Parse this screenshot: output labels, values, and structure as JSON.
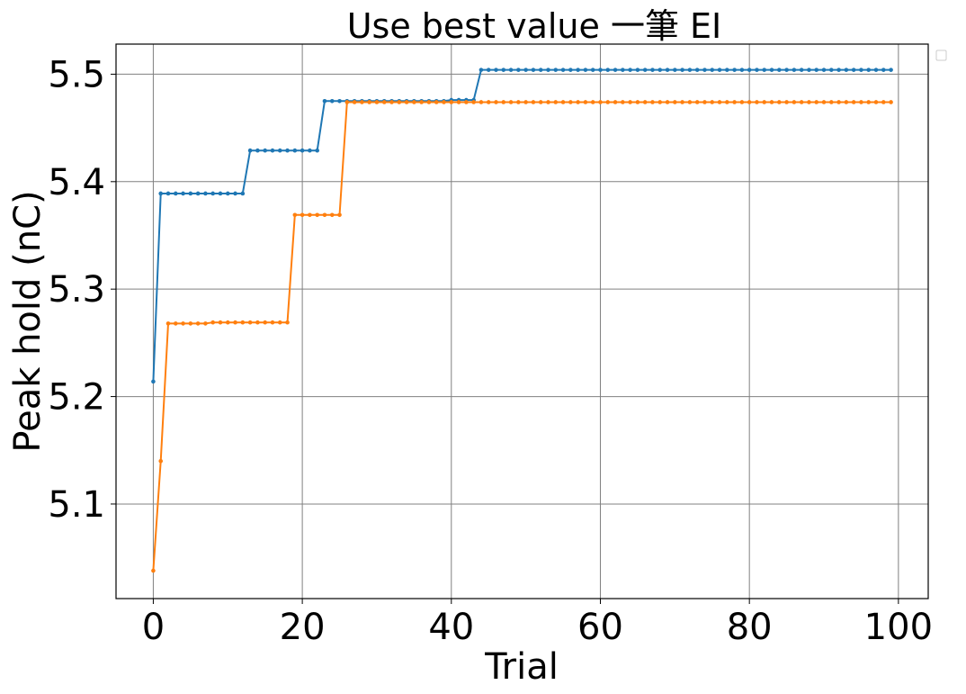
{
  "chart_data": {
    "type": "line",
    "title": "Use best value 一筆 EI",
    "xlabel": "Trial",
    "ylabel": "Peak hold (nC)",
    "xlim": [
      -5,
      104
    ],
    "ylim": [
      5.012,
      5.528
    ],
    "xticks": [
      0,
      20,
      40,
      60,
      80,
      100
    ],
    "yticks": [
      5.1,
      5.2,
      5.3,
      5.4,
      5.5
    ],
    "xtick_labels": [
      "0",
      "20",
      "40",
      "60",
      "80",
      "100"
    ],
    "ytick_labels": [
      "5.1",
      "5.2",
      "5.3",
      "5.4",
      "5.5"
    ],
    "grid": true,
    "legend": "top-right, empty",
    "series": [
      {
        "color": "#1f77b4",
        "steps": [
          {
            "from": 0,
            "value": 5.214
          },
          {
            "from": 1,
            "value": 5.389
          },
          {
            "from": 13,
            "value": 5.429
          },
          {
            "from": 23,
            "value": 5.475
          },
          {
            "from": 40,
            "value": 5.476
          },
          {
            "from": 44,
            "value": 5.504
          }
        ],
        "last_x": 99
      },
      {
        "color": "#ff7f0e",
        "steps": [
          {
            "from": 0,
            "value": 5.038
          },
          {
            "from": 1,
            "value": 5.14
          },
          {
            "from": 2,
            "value": 5.268
          },
          {
            "from": 8,
            "value": 5.269
          },
          {
            "from": 19,
            "value": 5.369
          },
          {
            "from": 26,
            "value": 5.474
          }
        ],
        "last_x": 99
      }
    ]
  }
}
